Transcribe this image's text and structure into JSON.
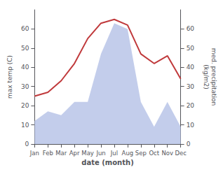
{
  "chart_data": {
    "type": "line",
    "xlabel": "date (month)",
    "ylabel": "max temp (C)",
    "y2label": "med. precipitation\n(kg/m2)",
    "categories": [
      "Jan",
      "Feb",
      "Mar",
      "Apr",
      "May",
      "Jun",
      "Jul",
      "Aug",
      "Sep",
      "Oct",
      "Nov",
      "Dec"
    ],
    "series": [
      {
        "type": "area",
        "axis": "y2",
        "color": "#b8c4e8",
        "values": [
          12,
          17,
          15,
          22,
          22,
          47,
          63,
          60,
          22,
          9,
          22,
          9
        ]
      },
      {
        "type": "line",
        "color": "#c0393b",
        "values": [
          25,
          27,
          33,
          42,
          55,
          63,
          65,
          62,
          47,
          42,
          46,
          34
        ]
      }
    ],
    "ylim": [
      0,
      70
    ],
    "yticks": [
      0,
      10,
      20,
      30,
      40,
      50,
      60
    ],
    "y2lim": [
      0,
      70
    ],
    "y2ticks": [
      0,
      10,
      20,
      30,
      40,
      50,
      60
    ],
    "grid": false
  }
}
